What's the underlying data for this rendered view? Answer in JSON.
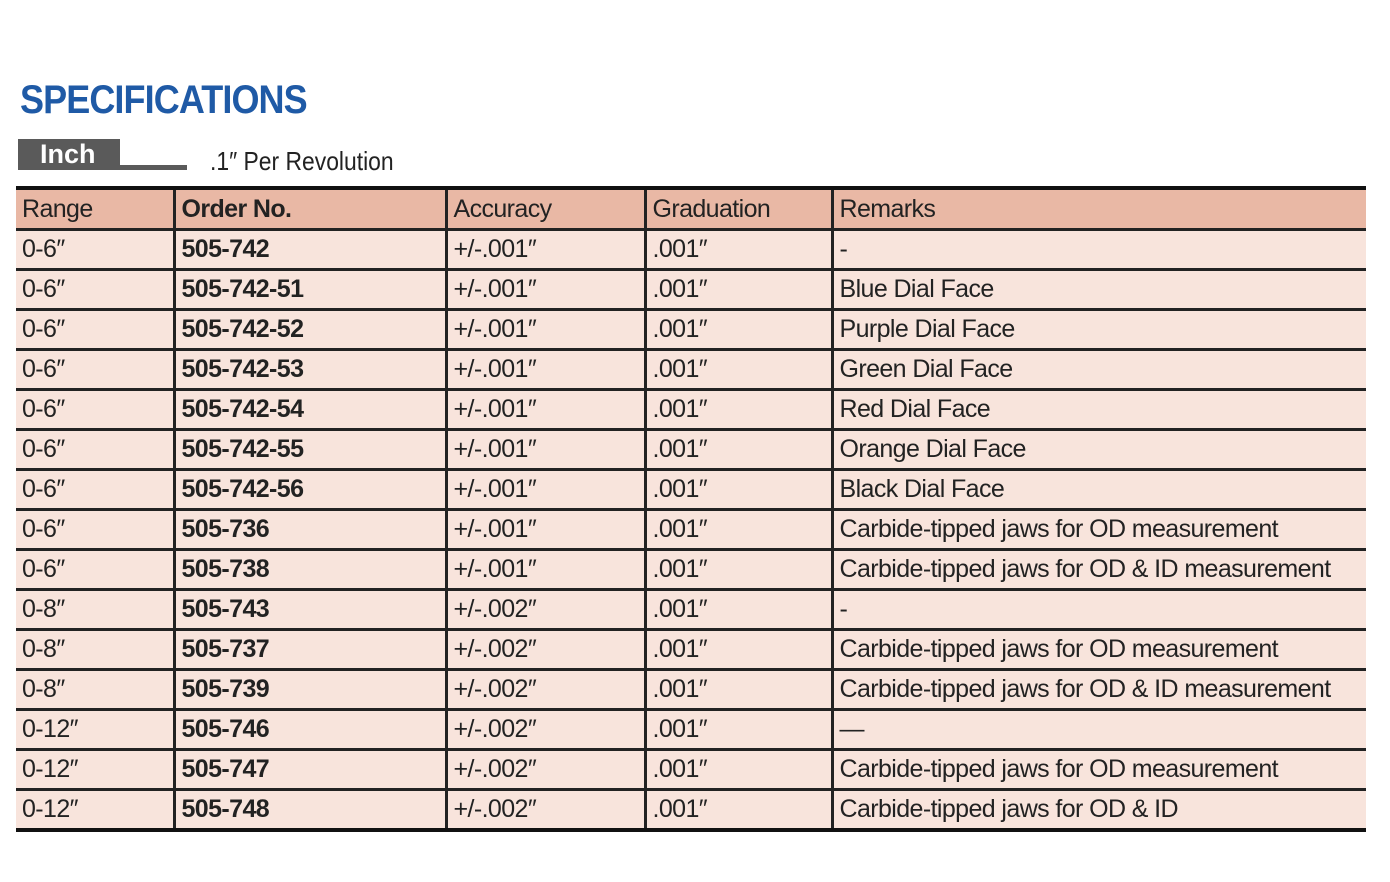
{
  "header": {
    "title": "SPECIFICATIONS",
    "tab": "Inch",
    "note": ".1″ Per Revolution"
  },
  "table": {
    "columns": [
      "Range",
      "Order No.",
      "Accuracy",
      "Graduation",
      "Remarks"
    ],
    "rows": [
      [
        "0-6″",
        "505-742",
        "+/-.001″",
        ".001″",
        "-"
      ],
      [
        "0-6″",
        "505-742-51",
        "+/-.001″",
        ".001″",
        "Blue Dial Face"
      ],
      [
        "0-6″",
        "505-742-52",
        "+/-.001″",
        ".001″",
        "Purple Dial Face"
      ],
      [
        "0-6″",
        "505-742-53",
        "+/-.001″",
        ".001″",
        "Green Dial Face"
      ],
      [
        "0-6″",
        "505-742-54",
        "+/-.001″",
        ".001″",
        "Red Dial Face"
      ],
      [
        "0-6″",
        "505-742-55",
        "+/-.001″",
        ".001″",
        "Orange Dial Face"
      ],
      [
        "0-6″",
        "505-742-56",
        "+/-.001″",
        ".001″",
        "Black Dial Face"
      ],
      [
        "0-6″",
        "505-736",
        "+/-.001″",
        ".001″",
        "Carbide-tipped jaws for OD measurement"
      ],
      [
        "0-6″",
        "505-738",
        "+/-.001″",
        ".001″",
        "Carbide-tipped jaws for OD & ID measurement"
      ],
      [
        "0-8″",
        "505-743",
        "+/-.002″",
        ".001″",
        "-"
      ],
      [
        "0-8″",
        "505-737",
        "+/-.002″",
        ".001″",
        "Carbide-tipped jaws for OD measurement"
      ],
      [
        "0-8″",
        "505-739",
        "+/-.002″",
        ".001″",
        "Carbide-tipped jaws for OD & ID measurement"
      ],
      [
        "0-12″",
        "505-746",
        "+/-.002″",
        ".001″",
        "—"
      ],
      [
        "0-12″",
        "505-747",
        "+/-.002″",
        ".001″",
        "Carbide-tipped jaws for OD measurement"
      ],
      [
        "0-12″",
        "505-748",
        "+/-.002″",
        ".001″",
        "Carbide-tipped jaws for OD & ID"
      ]
    ]
  }
}
